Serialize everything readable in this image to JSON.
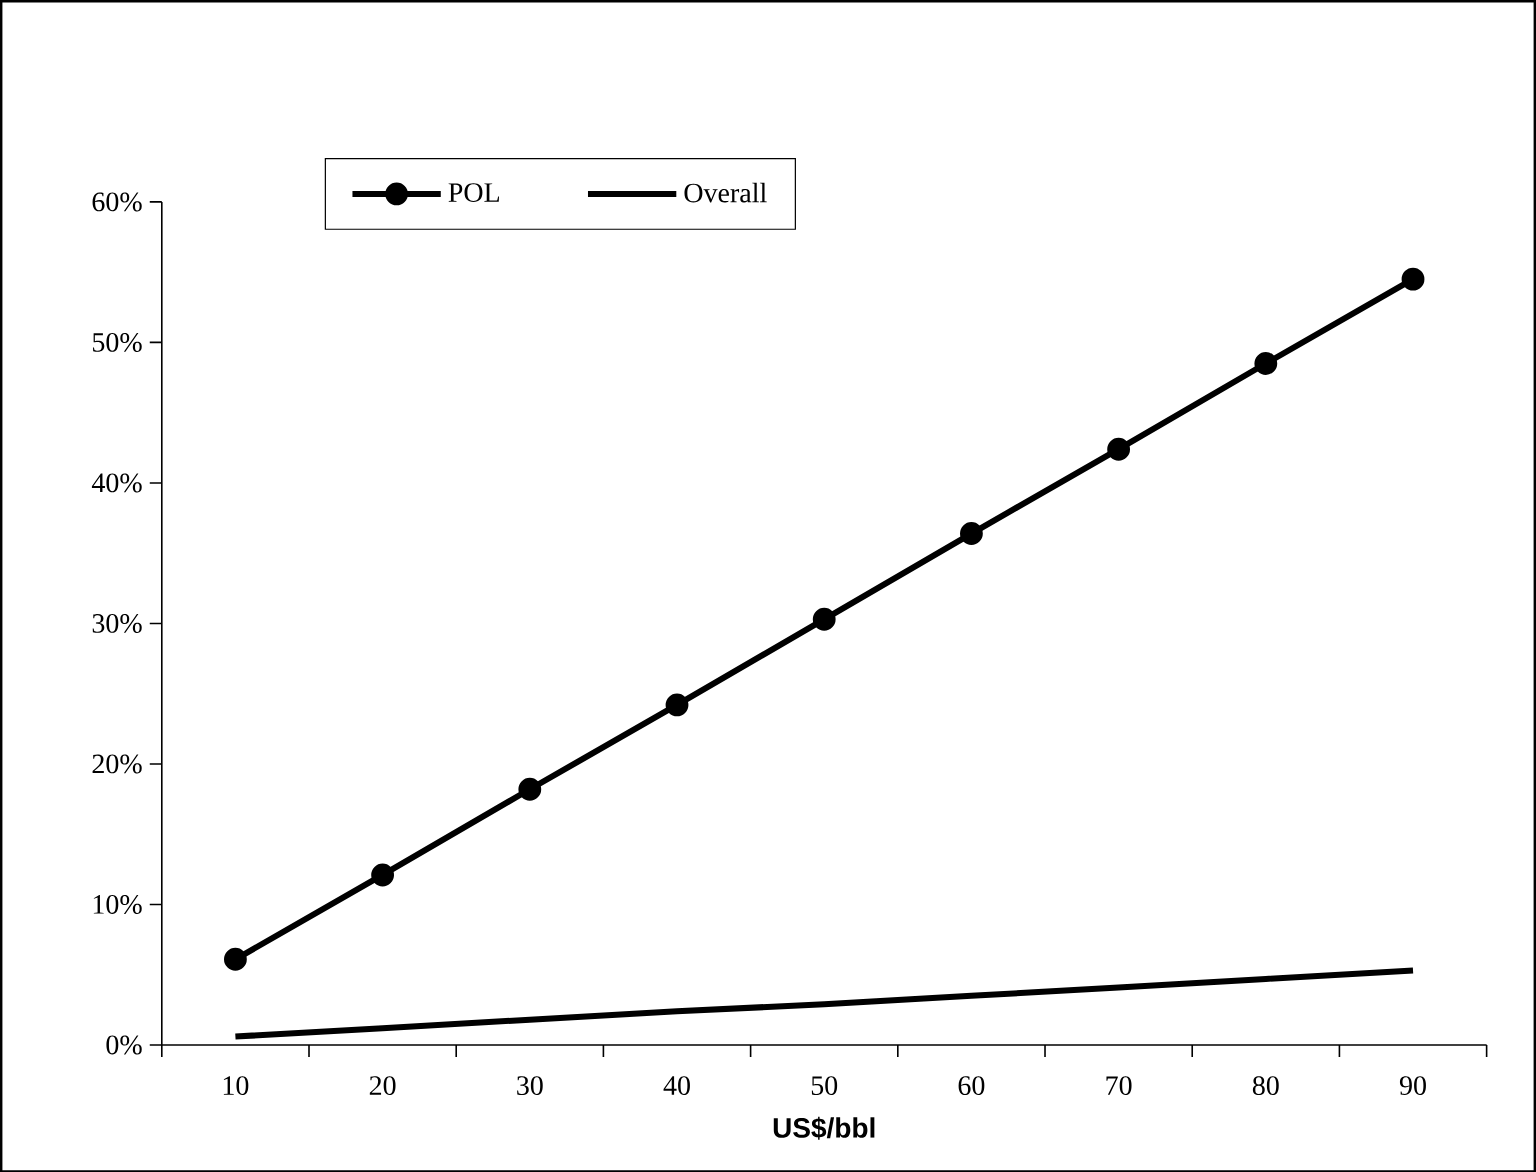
{
  "chart_data": {
    "type": "line",
    "xlabel": "US$/bbl",
    "categories": [
      "10",
      "20",
      "30",
      "40",
      "50",
      "60",
      "70",
      "80",
      "90"
    ],
    "series": [
      {
        "name": "POL",
        "color": "#000000",
        "marker": "circle",
        "values": [
          6.1,
          12.1,
          18.2,
          24.2,
          30.3,
          36.4,
          42.4,
          48.5,
          54.5
        ]
      },
      {
        "name": "Overall",
        "color": "#000000",
        "marker": "none",
        "values": [
          0.6,
          1.2,
          1.8,
          2.4,
          2.9,
          3.5,
          4.1,
          4.7,
          5.3
        ]
      }
    ],
    "ylim": [
      0,
      60
    ],
    "yticks": [
      {
        "value": 0,
        "label": "0%"
      },
      {
        "value": 10,
        "label": "10%"
      },
      {
        "value": 20,
        "label": "20%"
      },
      {
        "value": 30,
        "label": "30%"
      },
      {
        "value": 40,
        "label": "40%"
      },
      {
        "value": 50,
        "label": "50%"
      },
      {
        "value": 60,
        "label": "60%"
      }
    ],
    "legend": "top left"
  }
}
